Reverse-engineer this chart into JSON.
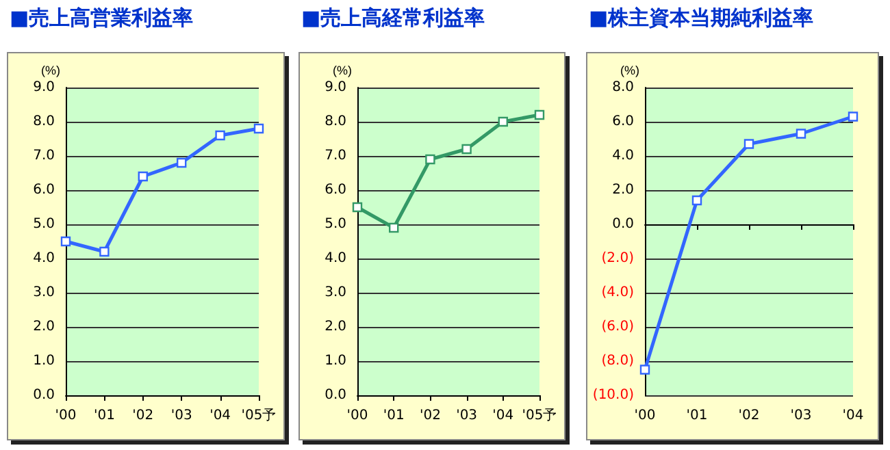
{
  "chart_data": [
    {
      "type": "line",
      "title": "■売上高営業利益率",
      "ylabel": "(%)",
      "categories": [
        "'00",
        "'01",
        "'02",
        "'03",
        "'04",
        "'05予"
      ],
      "series": [
        {
          "color": "#3366ff",
          "values": [
            4.5,
            4.2,
            6.4,
            6.8,
            7.6,
            7.8
          ]
        }
      ],
      "ylim": [
        0,
        9
      ],
      "yticks": [
        {
          "value": 0,
          "label": "0.0"
        },
        {
          "value": 1,
          "label": "1.0"
        },
        {
          "value": 2,
          "label": "2.0"
        },
        {
          "value": 3,
          "label": "3.0"
        },
        {
          "value": 4,
          "label": "4.0"
        },
        {
          "value": 5,
          "label": "5.0"
        },
        {
          "value": 6,
          "label": "6.0"
        },
        {
          "value": 7,
          "label": "7.0"
        },
        {
          "value": 8,
          "label": "8.0"
        },
        {
          "value": 9,
          "label": "9.0"
        }
      ],
      "grid": "y",
      "marker": "square",
      "line_style": "solid"
    },
    {
      "type": "line",
      "title": "■売上高経常利益率",
      "ylabel": "(%)",
      "categories": [
        "'00",
        "'01",
        "'02",
        "'03",
        "'04",
        "'05予"
      ],
      "series": [
        {
          "color": "#339966",
          "values": [
            5.5,
            4.9,
            6.9,
            7.2,
            8.0,
            8.2
          ]
        }
      ],
      "ylim": [
        0,
        9
      ],
      "yticks": [
        {
          "value": 0,
          "label": "0.0"
        },
        {
          "value": 1,
          "label": "1.0"
        },
        {
          "value": 2,
          "label": "2.0"
        },
        {
          "value": 3,
          "label": "3.0"
        },
        {
          "value": 4,
          "label": "4.0"
        },
        {
          "value": 5,
          "label": "5.0"
        },
        {
          "value": 6,
          "label": "6.0"
        },
        {
          "value": 7,
          "label": "7.0"
        },
        {
          "value": 8,
          "label": "8.0"
        },
        {
          "value": 9,
          "label": "9.0"
        }
      ],
      "grid": "y",
      "marker": "square",
      "line_style": "solid"
    },
    {
      "type": "line",
      "title": "■株主資本当期純利益率",
      "ylabel": "(%)",
      "categories": [
        "'00",
        "'01",
        "'02",
        "'03",
        "'04"
      ],
      "series": [
        {
          "color": "#3366ff",
          "values": [
            -8.5,
            1.4,
            4.7,
            5.3,
            6.3
          ]
        }
      ],
      "ylim": [
        -10,
        8
      ],
      "yticks": [
        {
          "value": -10,
          "label": "(10.0)"
        },
        {
          "value": -8,
          "label": "(8.0)"
        },
        {
          "value": -6,
          "label": "(6.0)"
        },
        {
          "value": -4,
          "label": "(4.0)"
        },
        {
          "value": -2,
          "label": "(2.0)"
        },
        {
          "value": 0,
          "label": "0.0"
        },
        {
          "value": 2,
          "label": "2.0"
        },
        {
          "value": 4,
          "label": "4.0"
        },
        {
          "value": 6,
          "label": "6.0"
        },
        {
          "value": 8,
          "label": "8.0"
        }
      ],
      "grid": "y",
      "marker": "square",
      "line_style": "solid"
    }
  ]
}
